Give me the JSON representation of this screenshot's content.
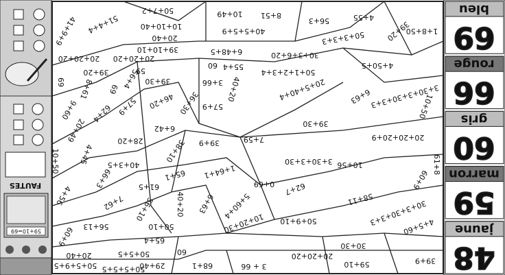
{
  "legend": [
    {
      "number": 69,
      "color": "bleu"
    },
    {
      "number": 66,
      "color": "rouge"
    },
    {
      "number": 60,
      "color": "gris"
    },
    {
      "number": 59,
      "color": "marron"
    },
    {
      "number": 48,
      "color": "jaune"
    }
  ],
  "toolbar": {
    "label": "FAUTES",
    "calculator_display": "59+10=69"
  },
  "puzzle": {
    "regions": [
      "50+7+2",
      "10+49",
      "8+51",
      "56+3",
      "4+55",
      "39+20",
      "1+8+50",
      "41+9+9",
      "51+4+4",
      "10+10+40",
      "20+40",
      "40+5+5+9",
      "50+3+3+3",
      "39+10+10",
      "6+48+5",
      "20+20+20",
      "20+20+20",
      "30+3+6+20",
      "4+50+5",
      "39+20",
      "59",
      "55+4",
      "60",
      "50+1+2+3+4",
      "69",
      "8+61",
      "69",
      "56+4",
      "39+30",
      "3+66",
      "40+20",
      "20+5+40+4",
      "3+30+3+30+3+3",
      "6+63",
      "9+60",
      "62+4",
      "57+9",
      "46+20",
      "36+30",
      "57+9",
      "10+50",
      "20+49",
      "6+42",
      "39+30",
      "4+45",
      "28+20",
      "39+9",
      "7+59",
      "20+20+20+9",
      "10+50",
      "40+3+5",
      "38+10",
      "3+30+3+30",
      "10+56",
      "60+9",
      "61+8",
      "4+56",
      "66+3",
      "61+5",
      "65+1",
      "1+64+1",
      "0+69",
      "62+7",
      "58+11",
      "7+62",
      "56+10",
      "40+20",
      "6+63",
      "5+60+4",
      "30+3+30+3+3",
      "56+13",
      "50+10",
      "10+20+30",
      "50+9+10",
      "60+9",
      "65+4",
      "4+5+60",
      "30+30",
      "50+5+5",
      "60",
      "20+20+20",
      "20+40",
      "29+40",
      "68+1",
      "3 + 66",
      "59+10",
      "39+9",
      "50+5+9+5",
      "50+5+5+5"
    ]
  }
}
